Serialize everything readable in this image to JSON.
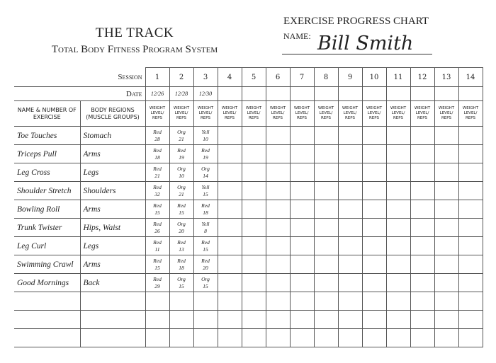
{
  "header": {
    "title": "THE TRACK",
    "subtitle": "Total Body Fitness Program System",
    "chart_title": "EXERCISE PROGRESS CHART",
    "name_label": "NAME:",
    "name": "Bill Smith"
  },
  "table": {
    "session_label": "Session",
    "date_label": "Date",
    "sessions": [
      1,
      2,
      3,
      4,
      5,
      6,
      7,
      8,
      9,
      10,
      11,
      12,
      13,
      14
    ],
    "dates": [
      "12/26",
      "12/28",
      "12/30"
    ],
    "col_exercise": "NAME & NUMBER OF EXERCISE",
    "col_region": "BODY REGIONS (MUSCLE GROUPS)",
    "col_session": "WEIGHT LEVEL/ REPS",
    "rows": [
      {
        "exercise": "Toe Touches",
        "region": "Stomach",
        "entries": [
          {
            "level": "Red",
            "reps": 28
          },
          {
            "level": "Org",
            "reps": 21
          },
          {
            "level": "Yell",
            "reps": 10
          }
        ]
      },
      {
        "exercise": "Triceps Pull",
        "region": "Arms",
        "entries": [
          {
            "level": "Red",
            "reps": 18
          },
          {
            "level": "Red",
            "reps": 19
          },
          {
            "level": "Red",
            "reps": 19
          }
        ]
      },
      {
        "exercise": "Leg Cross",
        "region": "Legs",
        "entries": [
          {
            "level": "Red",
            "reps": 21
          },
          {
            "level": "Org",
            "reps": 10
          },
          {
            "level": "Org",
            "reps": 14
          }
        ]
      },
      {
        "exercise": "Shoulder Stretch",
        "region": "Shoulders",
        "entries": [
          {
            "level": "Red",
            "reps": 32
          },
          {
            "level": "Org",
            "reps": 21
          },
          {
            "level": "Yell",
            "reps": 15
          }
        ]
      },
      {
        "exercise": "Bowling Roll",
        "region": "Arms",
        "entries": [
          {
            "level": "Red",
            "reps": 15
          },
          {
            "level": "Red",
            "reps": 15
          },
          {
            "level": "Red",
            "reps": 18
          }
        ]
      },
      {
        "exercise": "Trunk Twister",
        "region": "Hips, Waist",
        "entries": [
          {
            "level": "Red",
            "reps": 26
          },
          {
            "level": "Org",
            "reps": 20
          },
          {
            "level": "Yell",
            "reps": 8
          }
        ]
      },
      {
        "exercise": "Leg Curl",
        "region": "Legs",
        "entries": [
          {
            "level": "Red",
            "reps": 11
          },
          {
            "level": "Red",
            "reps": 13
          },
          {
            "level": "Red",
            "reps": 15
          }
        ]
      },
      {
        "exercise": "Swimming Crawl",
        "region": "Arms",
        "entries": [
          {
            "level": "Red",
            "reps": 15
          },
          {
            "level": "Red",
            "reps": 18
          },
          {
            "level": "Red",
            "reps": 20
          }
        ]
      },
      {
        "exercise": "Good Mornings",
        "region": "Back",
        "entries": [
          {
            "level": "Red",
            "reps": 29
          },
          {
            "level": "Org",
            "reps": 15
          },
          {
            "level": "Org",
            "reps": 15
          }
        ]
      }
    ]
  }
}
